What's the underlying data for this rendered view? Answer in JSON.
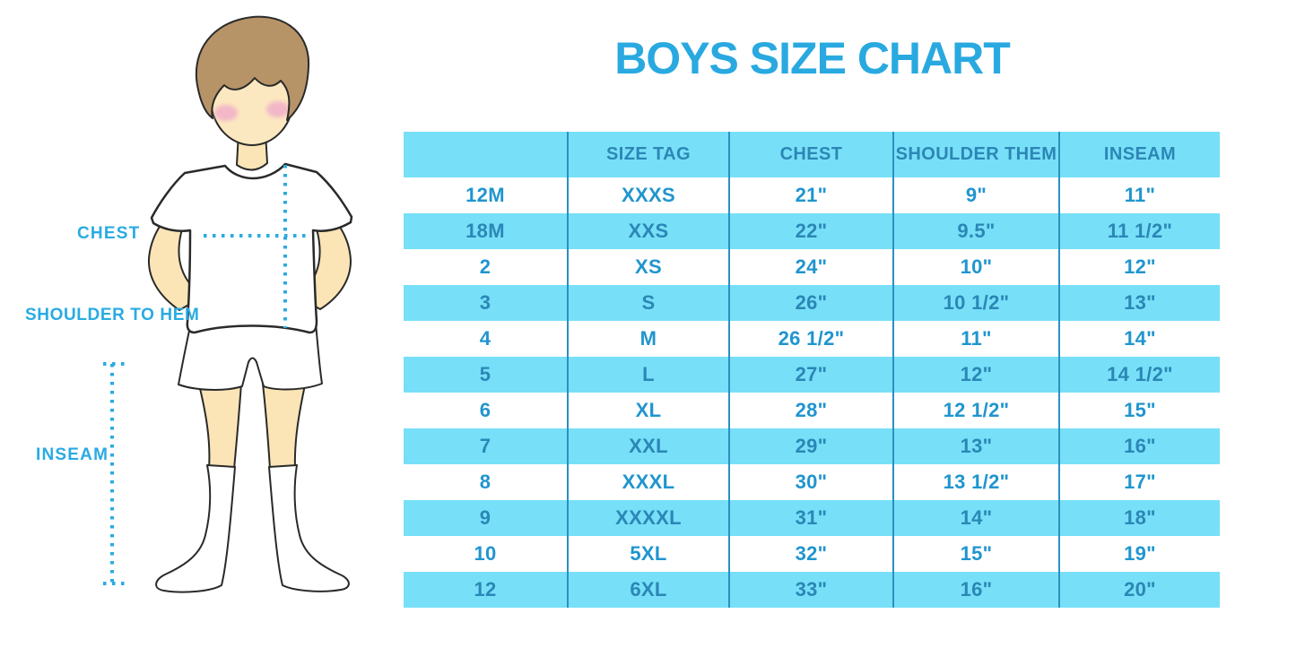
{
  "title": "BOYS SIZE CHART",
  "figure": {
    "labels": {
      "chest": "CHEST",
      "shoulder_to_hem": "SHOULDER TO HEM",
      "inseam": "INSEAM"
    }
  },
  "table": {
    "headers": [
      "",
      "SIZE TAG",
      "CHEST",
      "SHOULDER THEM",
      "INSEAM"
    ],
    "rows": [
      [
        "12M",
        "XXXS",
        "21\"",
        "9\"",
        "11\""
      ],
      [
        "18M",
        "XXS",
        "22\"",
        "9.5\"",
        "11 1/2\""
      ],
      [
        "2",
        "XS",
        "24\"",
        "10\"",
        "12\""
      ],
      [
        "3",
        "S",
        "26\"",
        "10 1/2\"",
        "13\""
      ],
      [
        "4",
        "M",
        "26 1/2\"",
        "11\"",
        "14\""
      ],
      [
        "5",
        "L",
        "27\"",
        "12\"",
        "14 1/2\""
      ],
      [
        "6",
        "XL",
        "28\"",
        "12 1/2\"",
        "15\""
      ],
      [
        "7",
        "XXL",
        "29\"",
        "13\"",
        "16\""
      ],
      [
        "8",
        "XXXL",
        "30\"",
        "13 1/2\"",
        "17\""
      ],
      [
        "9",
        "XXXXL",
        "31\"",
        "14\"",
        "18\""
      ],
      [
        "10",
        "5XL",
        "32\"",
        "15\"",
        "19\""
      ],
      [
        "12",
        "6XL",
        "33\"",
        "16\"",
        "20\""
      ]
    ]
  },
  "colors": {
    "title_blue": "#29A9E0",
    "accent_blue": "#29ABE2",
    "row_blue": "#77E0F8",
    "divider_blue": "#2B90C0",
    "header_text": "#2C86B5",
    "cell_text": "#2095CE",
    "cell_text_on_blue": "#2B87B6",
    "skin": "#FBE5B6",
    "hair": "#B79467",
    "cheek": "#F2B7C8",
    "outline": "#2A2A2A"
  }
}
